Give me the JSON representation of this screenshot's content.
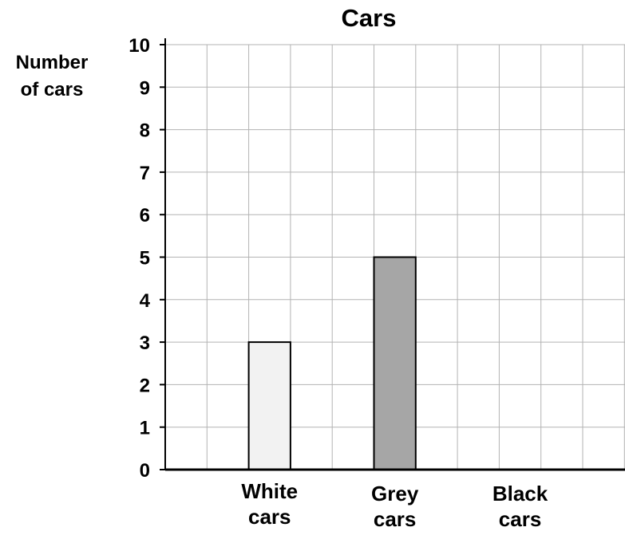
{
  "chart_data": {
    "type": "bar",
    "title": "Cars",
    "ylabel": [
      "Number",
      "of cars"
    ],
    "xlabel": "",
    "ylim": [
      0,
      10
    ],
    "yticks": [
      "0",
      "1",
      "2",
      "3",
      "4",
      "5",
      "6",
      "7",
      "8",
      "9",
      "10"
    ],
    "categories": [
      {
        "lines": [
          "White",
          "cars"
        ],
        "value": 3,
        "color": "#f2f2f2"
      },
      {
        "lines": [
          "Grey",
          "cars"
        ],
        "value": 5,
        "color": "#a6a6a6"
      },
      {
        "lines": [
          "Black",
          "cars"
        ],
        "value": null,
        "color": "#000000"
      }
    ],
    "grid": true
  }
}
